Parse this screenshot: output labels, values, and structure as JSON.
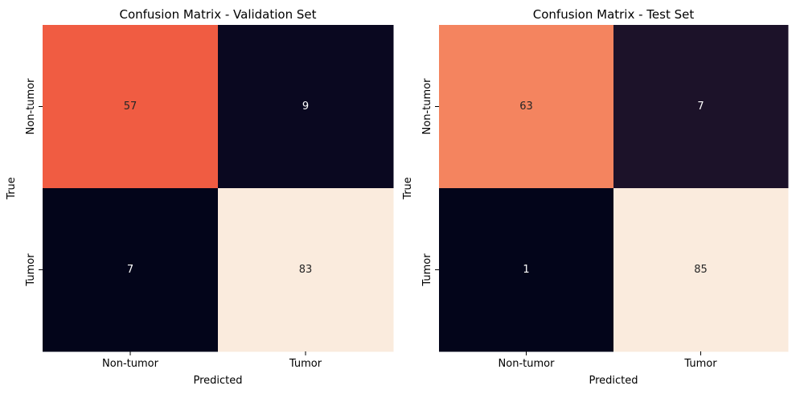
{
  "chart_data": [
    {
      "type": "heatmap",
      "title": "Confusion Matrix - Validation Set",
      "xlabel": "Predicted",
      "ylabel": "True",
      "x_categories": [
        "Non-tumor",
        "Tumor"
      ],
      "y_categories": [
        "Non-tumor",
        "Tumor"
      ],
      "values": [
        [
          57,
          9
        ],
        [
          7,
          83
        ]
      ],
      "cell_colors": [
        [
          "#f05c42",
          "#0a0820"
        ],
        [
          "#03051a",
          "#faebdd"
        ]
      ],
      "colorbar": false
    },
    {
      "type": "heatmap",
      "title": "Confusion Matrix - Test Set",
      "xlabel": "Predicted",
      "ylabel": "True",
      "x_categories": [
        "Non-tumor",
        "Tumor"
      ],
      "y_categories": [
        "Non-tumor",
        "Tumor"
      ],
      "values": [
        [
          63,
          7
        ],
        [
          1,
          85
        ]
      ],
      "cell_colors": [
        [
          "#f4845f",
          "#1c1229"
        ],
        [
          "#03051a",
          "#faebdd"
        ]
      ],
      "colorbar": false
    }
  ]
}
